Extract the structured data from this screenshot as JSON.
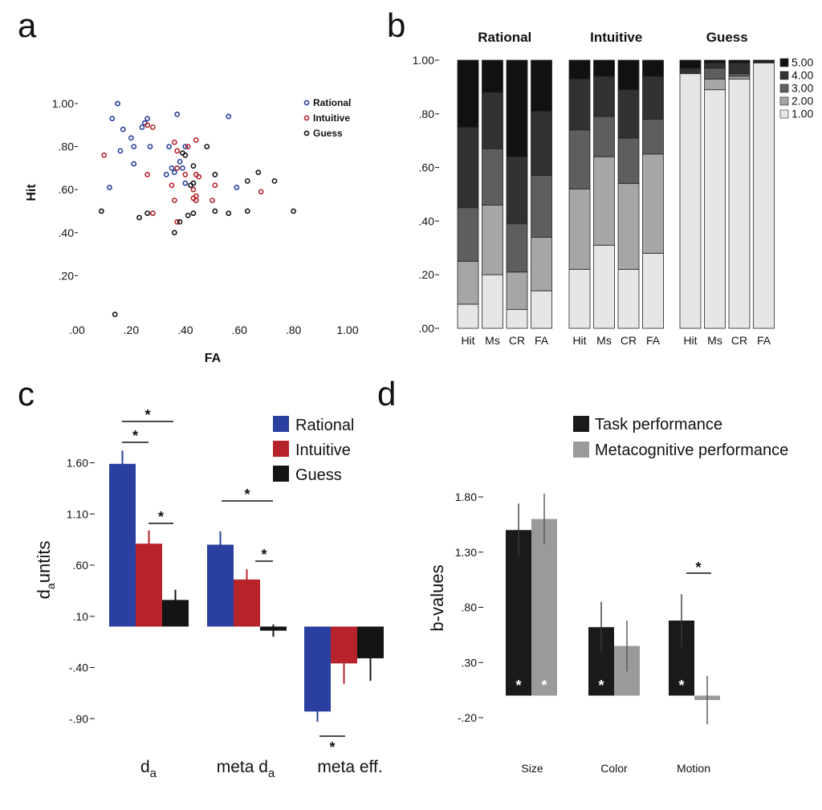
{
  "colors": {
    "rational": "#2a3f9f",
    "intuitive": "#b7232b",
    "guess": "#141414",
    "gray": "#999999"
  },
  "panels": {
    "a": "a",
    "b": "b",
    "c": "c",
    "d": "d"
  },
  "chart_data": [
    {
      "panel": "a",
      "type": "scatter",
      "xlabel": "FA",
      "ylabel": "Hit",
      "xlim": [
        0,
        1
      ],
      "ylim": [
        0,
        1
      ],
      "x_ticks": [
        ".00",
        ".20",
        ".40",
        ".60",
        ".80",
        "1.00"
      ],
      "y_ticks": [
        ".20",
        ".40",
        ".60",
        ".80",
        "1.00"
      ],
      "grid": false,
      "legend_position": "top-right",
      "series": [
        {
          "name": "Rational",
          "color": "#2a3f9f",
          "x": [
            0.15,
            0.13,
            0.26,
            0.37,
            0.56,
            0.17,
            0.24,
            0.25,
            0.16,
            0.21,
            0.2,
            0.27,
            0.34,
            0.4,
            0.35,
            0.38,
            0.21,
            0.39,
            0.33,
            0.36,
            0.59,
            0.12,
            0.4
          ],
          "y": [
            1.0,
            0.93,
            0.93,
            0.95,
            0.94,
            0.88,
            0.89,
            0.91,
            0.78,
            0.8,
            0.84,
            0.8,
            0.8,
            0.8,
            0.7,
            0.73,
            0.72,
            0.7,
            0.67,
            0.68,
            0.61,
            0.61,
            0.63
          ]
        },
        {
          "name": "Intuitive",
          "color": "#b7232b",
          "x": [
            0.26,
            0.28,
            0.1,
            0.36,
            0.37,
            0.44,
            0.41,
            0.26,
            0.37,
            0.44,
            0.45,
            0.4,
            0.51,
            0.35,
            0.43,
            0.44,
            0.5,
            0.43,
            0.44,
            0.36,
            0.28,
            0.68,
            0.37
          ],
          "y": [
            0.9,
            0.89,
            0.76,
            0.82,
            0.78,
            0.83,
            0.8,
            0.67,
            0.7,
            0.67,
            0.66,
            0.67,
            0.62,
            0.62,
            0.6,
            0.57,
            0.55,
            0.56,
            0.55,
            0.55,
            0.49,
            0.59,
            0.45
          ]
        },
        {
          "name": "Guess",
          "color": "#141414",
          "x": [
            0.39,
            0.48,
            0.43,
            0.43,
            0.42,
            0.51,
            0.67,
            0.63,
            0.73,
            0.09,
            0.23,
            0.26,
            0.41,
            0.43,
            0.51,
            0.56,
            0.63,
            0.8,
            0.38,
            0.36,
            0.4,
            0.14
          ],
          "y": [
            0.77,
            0.8,
            0.71,
            0.63,
            0.62,
            0.67,
            0.68,
            0.64,
            0.64,
            0.5,
            0.47,
            0.49,
            0.48,
            0.49,
            0.5,
            0.49,
            0.5,
            0.5,
            0.45,
            0.4,
            0.76,
            0.02
          ]
        }
      ]
    },
    {
      "panel": "b",
      "type": "bar",
      "stacked": true,
      "ylim": [
        0,
        1
      ],
      "y_ticks": [
        ".00",
        ".20",
        ".40",
        ".60",
        ".80",
        "1.00"
      ],
      "groups": [
        "Rational",
        "Intuitive",
        "Guess"
      ],
      "categories": [
        "Hit",
        "Ms",
        "CR",
        "FA"
      ],
      "legend_position": "right",
      "levels": [
        {
          "name": "1.00",
          "color": "#e6e6e6"
        },
        {
          "name": "2.00",
          "color": "#a6a6a6"
        },
        {
          "name": "3.00",
          "color": "#5e5e5e"
        },
        {
          "name": "4.00",
          "color": "#323232"
        },
        {
          "name": "5.00",
          "color": "#111111"
        }
      ],
      "stacks": [
        [
          [
            0.09,
            0.16,
            0.2,
            0.3,
            0.25
          ],
          [
            0.2,
            0.26,
            0.21,
            0.21,
            0.12
          ],
          [
            0.07,
            0.14,
            0.18,
            0.25,
            0.36
          ],
          [
            0.14,
            0.2,
            0.23,
            0.24,
            0.19
          ]
        ],
        [
          [
            0.22,
            0.3,
            0.22,
            0.19,
            0.07
          ],
          [
            0.31,
            0.33,
            0.15,
            0.15,
            0.06
          ],
          [
            0.22,
            0.32,
            0.17,
            0.18,
            0.11
          ],
          [
            0.28,
            0.37,
            0.13,
            0.16,
            0.06
          ]
        ],
        [
          [
            0.95,
            0.0,
            0.0,
            0.02,
            0.03
          ],
          [
            0.89,
            0.04,
            0.04,
            0.02,
            0.01
          ],
          [
            0.93,
            0.01,
            0.01,
            0.04,
            0.01
          ],
          [
            0.99,
            0.0,
            0.0,
            0.005,
            0.005
          ]
        ]
      ]
    },
    {
      "panel": "c",
      "type": "bar",
      "ylabel_main": "d",
      "ylabel_sub": "a",
      "ylabel_rest": "untits",
      "y_ticks": [
        "-.90",
        "-.40",
        ".10",
        ".60",
        "1.10",
        "1.60"
      ],
      "ylim": [
        -1.0,
        1.85
      ],
      "categories": [
        {
          "main": "d",
          "sub": "a",
          "rest": ""
        },
        {
          "main": "meta d",
          "sub": "a",
          "rest": ""
        },
        {
          "main": "meta eff.",
          "sub": "",
          "rest": ""
        }
      ],
      "legend_position": "top-right",
      "series": [
        {
          "name": "Rational",
          "color": "#2a3f9f",
          "values": [
            1.59,
            0.8,
            -0.83
          ],
          "err": [
            0.13,
            0.13,
            0.1
          ]
        },
        {
          "name": "Intuitive",
          "color": "#b7232b",
          "values": [
            0.81,
            0.46,
            -0.36
          ],
          "err": [
            0.13,
            0.1,
            0.2
          ]
        },
        {
          "name": "Guess",
          "color": "#141414",
          "values": [
            0.26,
            -0.04,
            -0.31
          ],
          "err": [
            0.1,
            0.06,
            0.22
          ]
        }
      ],
      "star": "*"
    },
    {
      "panel": "d",
      "type": "bar",
      "ylabel": "b-values",
      "y_ticks": [
        "-.20",
        ".30",
        ".80",
        "1.30",
        "1.80"
      ],
      "ylim": [
        -0.35,
        1.95
      ],
      "categories": [
        "Size",
        "Color",
        "Motion"
      ],
      "legend_position": "top",
      "series": [
        {
          "name": "Task performance",
          "color": "#1a1a1a",
          "values": [
            1.5,
            0.62,
            0.68
          ],
          "err": [
            0.24,
            0.23,
            0.24
          ]
        },
        {
          "name": "Metacognitive performance",
          "color": "#9a9a9a",
          "values": [
            1.6,
            0.45,
            -0.04
          ],
          "err": [
            0.23,
            0.23,
            0.22
          ]
        }
      ],
      "star": "*"
    }
  ]
}
